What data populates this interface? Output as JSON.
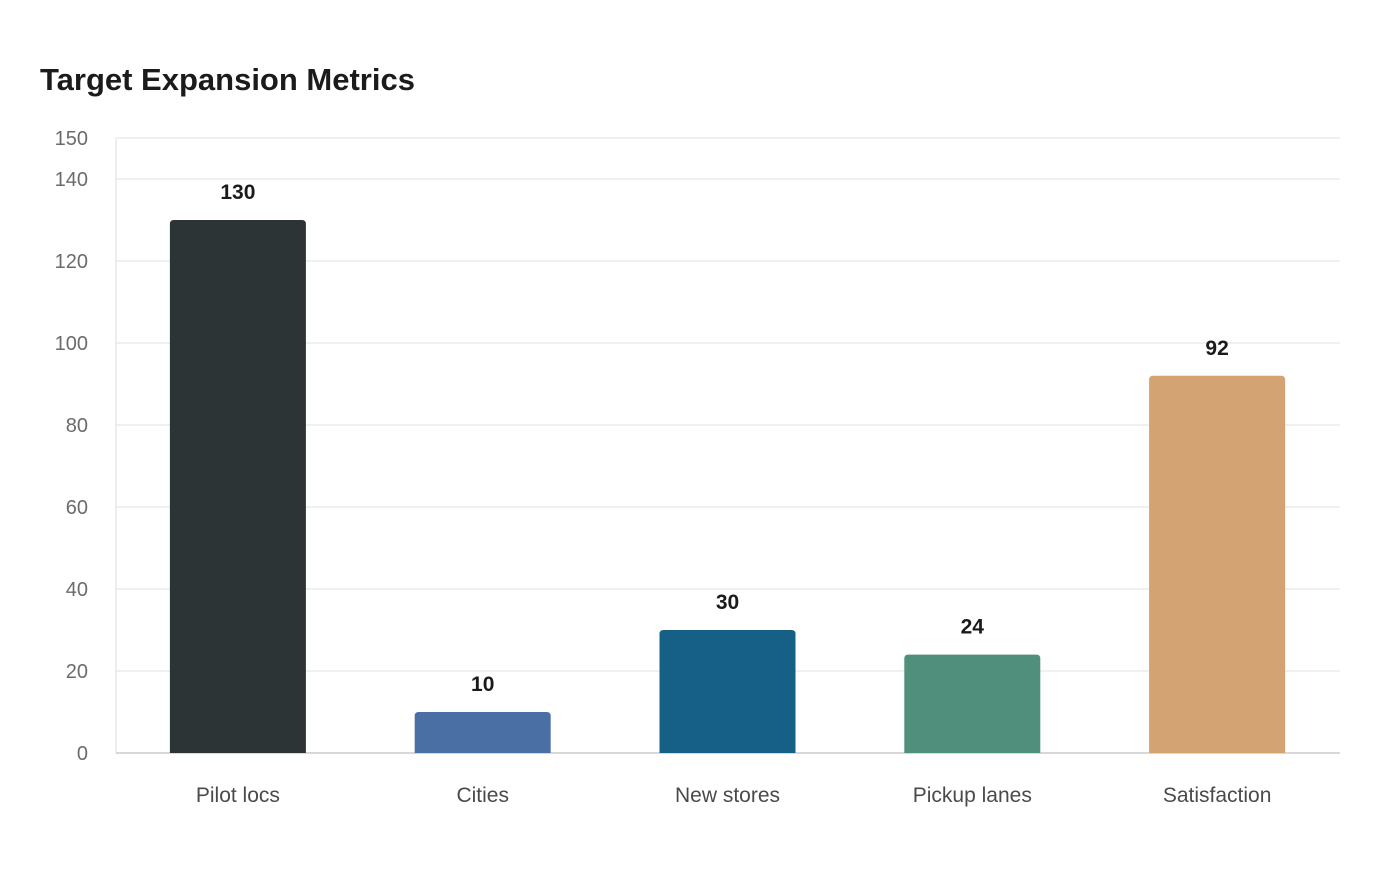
{
  "chart_data": {
    "type": "bar",
    "title": "Target Expansion Metrics",
    "xlabel": "",
    "ylabel": "",
    "categories": [
      "Pilot locs",
      "Cities",
      "New stores",
      "Pickup lanes",
      "Satisfaction"
    ],
    "values": [
      130,
      10,
      30,
      24,
      92
    ],
    "value_labels": [
      "130",
      "10",
      "30",
      "24",
      "92"
    ],
    "colors": [
      "#2d3436",
      "#4a6fa5",
      "#166088",
      "#4f8f7b",
      "#d4a373"
    ],
    "ylim": [
      0,
      150
    ],
    "yticks": [
      0,
      20,
      40,
      60,
      80,
      100,
      120,
      140,
      150
    ],
    "ytick_labels": [
      "0",
      "20",
      "40",
      "60",
      "80",
      "100",
      "120",
      "140",
      "150"
    ],
    "grid": true,
    "legend": "none"
  }
}
